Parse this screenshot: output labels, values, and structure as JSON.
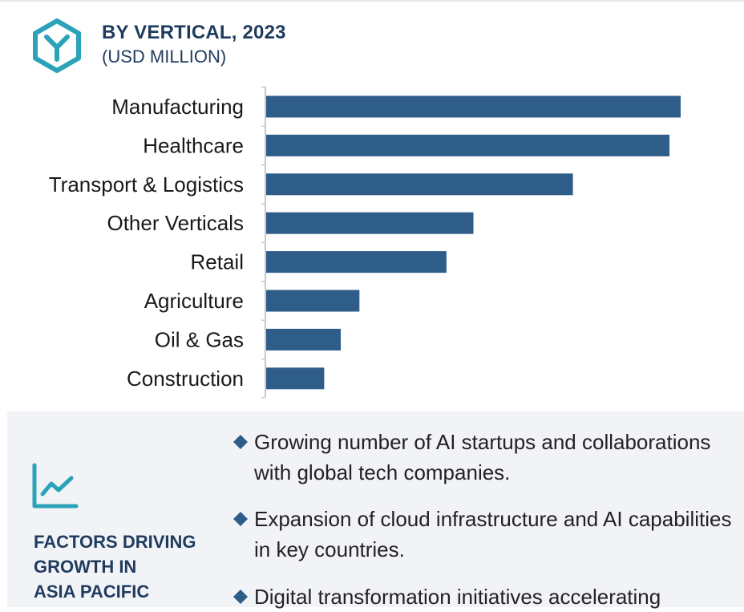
{
  "header": {
    "title": "BY VERTICAL, 2023",
    "subtitle": "(USD MILLION)",
    "logo_icon": "hexagon-y-icon"
  },
  "colors": {
    "bar": "#2f5d8a",
    "accent": "#2aa3b8",
    "title": "#1f3b5e",
    "panel_bg": "#f1f3f7",
    "axis": "#c8c8c8"
  },
  "chart_data": {
    "type": "bar",
    "orientation": "horizontal",
    "title": "BY VERTICAL, 2023",
    "subtitle": "(USD MILLION)",
    "categories": [
      "Manufacturing",
      "Healthcare",
      "Transport & Logistics",
      "Other Verticals",
      "Retail",
      "Agriculture",
      "Oil & Gas",
      "Construction"
    ],
    "values": [
      100,
      97.3,
      74,
      50,
      43.5,
      22.5,
      18,
      14
    ],
    "value_note": "No values printed; relative lengths estimated, largest = 100",
    "xlim": [
      0,
      100
    ],
    "grid": false,
    "legend": "none"
  },
  "factors": {
    "icon": "trend-line-chart-icon",
    "title_lines": [
      "FACTORS DRIVING",
      "GROWTH IN",
      "ASIA PACIFIC"
    ],
    "items": [
      "Growing number of AI startups and collaborations with global tech companies.",
      "Expansion of cloud infrastructure and AI capabilities in key countries.",
      "Digital transformation initiatives accelerating"
    ]
  }
}
